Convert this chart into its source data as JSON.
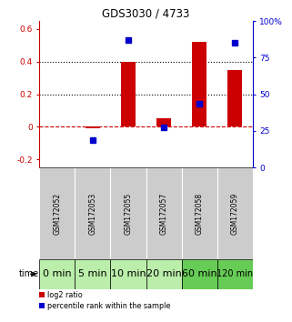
{
  "title": "GDS3030 / 4733",
  "samples": [
    "GSM172052",
    "GSM172053",
    "GSM172055",
    "GSM172057",
    "GSM172058",
    "GSM172059"
  ],
  "time_labels": [
    "0 min",
    "5 min",
    "10 min",
    "20 min",
    "60 min",
    "120 min"
  ],
  "log2_ratio": [
    0.0,
    -0.01,
    0.4,
    0.05,
    0.52,
    0.35
  ],
  "percentile_rank_pct": [
    null,
    18.5,
    87.0,
    27.5,
    43.5,
    85.0
  ],
  "bar_color": "#cc0000",
  "dot_color": "#0000cc",
  "ylim_left": [
    -0.25,
    0.65
  ],
  "ylim_right": [
    0,
    100
  ],
  "yticks_left": [
    -0.2,
    0.0,
    0.2,
    0.4,
    0.6
  ],
  "ytick_labels_left": [
    "-0.2",
    "0",
    "0.2",
    "0.4",
    "0.6"
  ],
  "yticks_right": [
    0,
    25,
    50,
    75,
    100
  ],
  "ytick_labels_right": [
    "0",
    "25",
    "50",
    "75",
    "100%"
  ],
  "hline_y_left": [
    0.0,
    0.2,
    0.4
  ],
  "hline_styles": [
    "--",
    ":",
    ":"
  ],
  "hline_colors": [
    "#cc0000",
    "#000000",
    "#000000"
  ],
  "bg_color_samples": "#cccccc",
  "bg_color_time_light": "#bbeeaa",
  "bg_color_time_dark": "#66cc55",
  "time_font_sizes": [
    8,
    8,
    8,
    8,
    8,
    7
  ]
}
